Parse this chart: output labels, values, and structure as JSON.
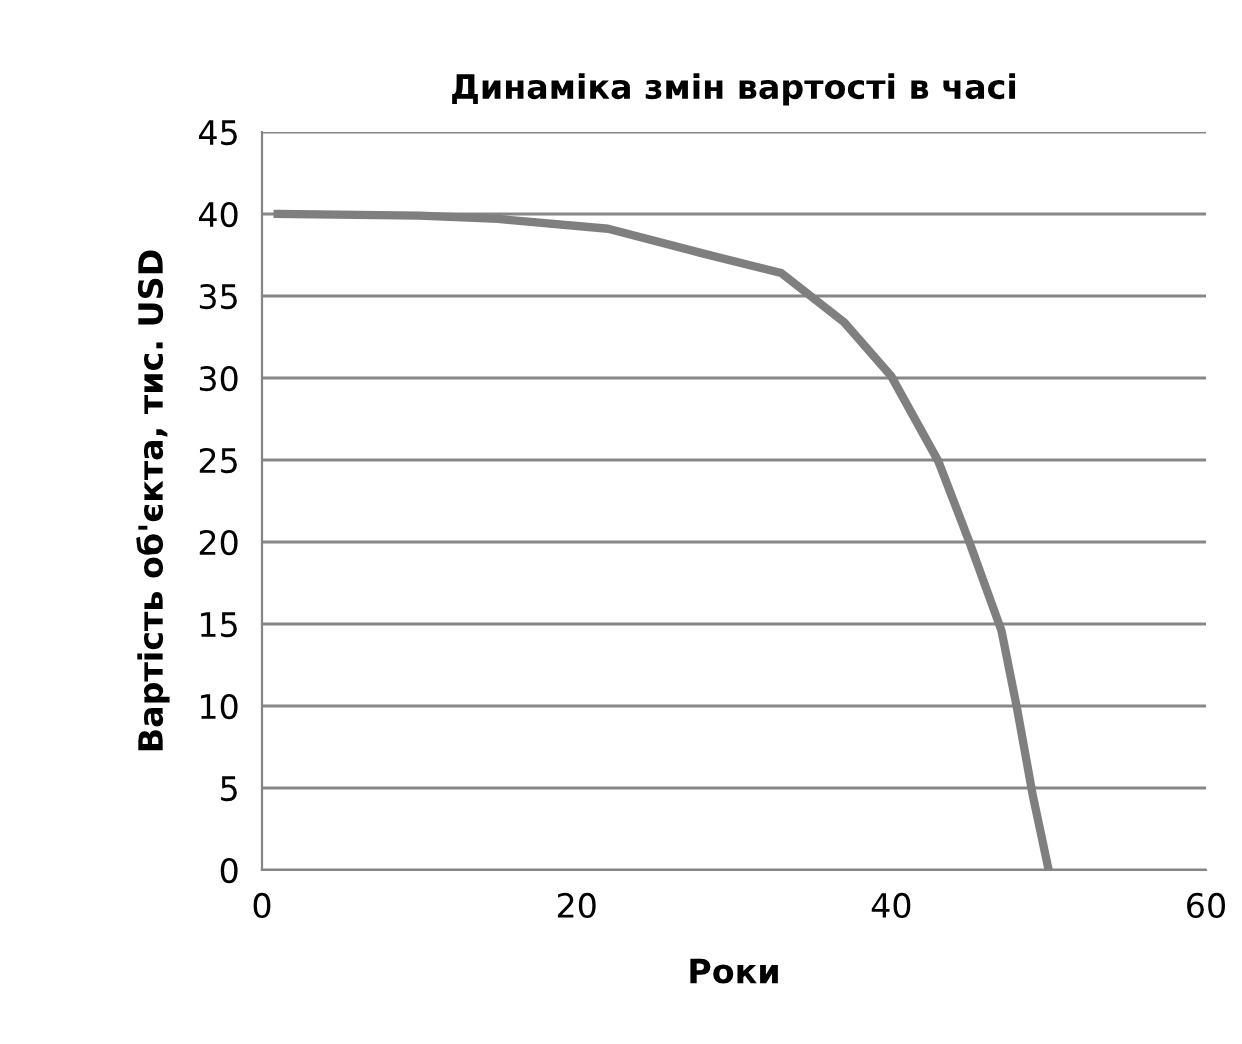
{
  "chart_data": {
    "type": "line",
    "title": "Динаміка змін вартості в часі",
    "xlabel": "Роки",
    "ylabel": "Вартість об'єкта, тис. USD",
    "series": [
      {
        "color": "#7f7f7f",
        "x": [
          1,
          10,
          15,
          22,
          28,
          33,
          37,
          40,
          43,
          45,
          47,
          48,
          49,
          50
        ],
        "values": [
          40,
          39.9,
          39.7,
          39.1,
          37.6,
          36.4,
          33.4,
          30.1,
          24.9,
          19.9,
          14.6,
          9.8,
          4.5,
          0
        ]
      }
    ],
    "xlim": [
      0,
      60
    ],
    "xticks": [
      0,
      20,
      40,
      60
    ],
    "ylim": [
      0,
      45
    ],
    "yticks": [
      0,
      5,
      10,
      15,
      20,
      25,
      30,
      35,
      40,
      45
    ],
    "grid": "y",
    "legend": false,
    "marker": "none",
    "line_style": "solid"
  }
}
